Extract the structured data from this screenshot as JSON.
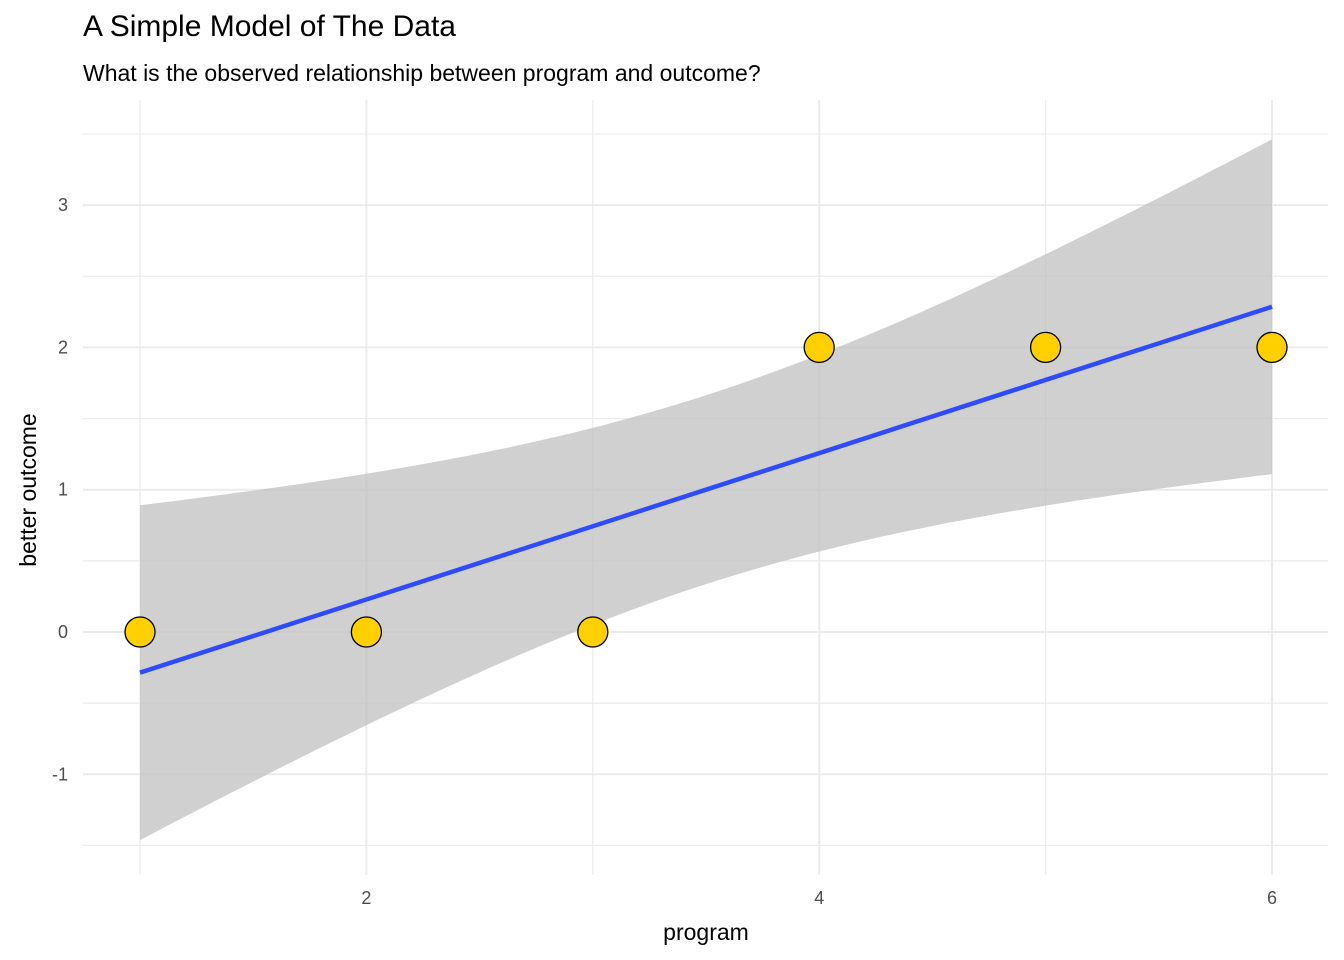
{
  "chart_data": {
    "type": "scatter",
    "title": "A Simple Model of The Data",
    "subtitle": "What is the observed relationship between program and outcome?",
    "xlabel": "program",
    "ylabel": "better outcome",
    "x": [
      1,
      2,
      3,
      4,
      5,
      6
    ],
    "y": [
      0,
      0,
      0,
      2,
      2,
      2
    ],
    "xlim": [
      0.75,
      6.25
    ],
    "ylim": [
      -1.6,
      3.65
    ],
    "xticks": [
      "2",
      "4",
      "6"
    ],
    "xtick_values": [
      2,
      4,
      6
    ],
    "yticks": [
      "-1",
      "0",
      "1",
      "2",
      "3"
    ],
    "ytick_values": [
      -1,
      0,
      1,
      2,
      3
    ],
    "grid": true,
    "fit": {
      "method": "lm",
      "slope": 0.5143,
      "intercept": -0.8,
      "confidence": 0.95,
      "t_crit": 2.776,
      "residual_se": 0.5857
    },
    "colors": {
      "points": "#FFD000",
      "point_stroke": "#000000",
      "line": "#2E4BFF",
      "band": "#BEBEBE",
      "grid": "#EBEBEB"
    }
  }
}
